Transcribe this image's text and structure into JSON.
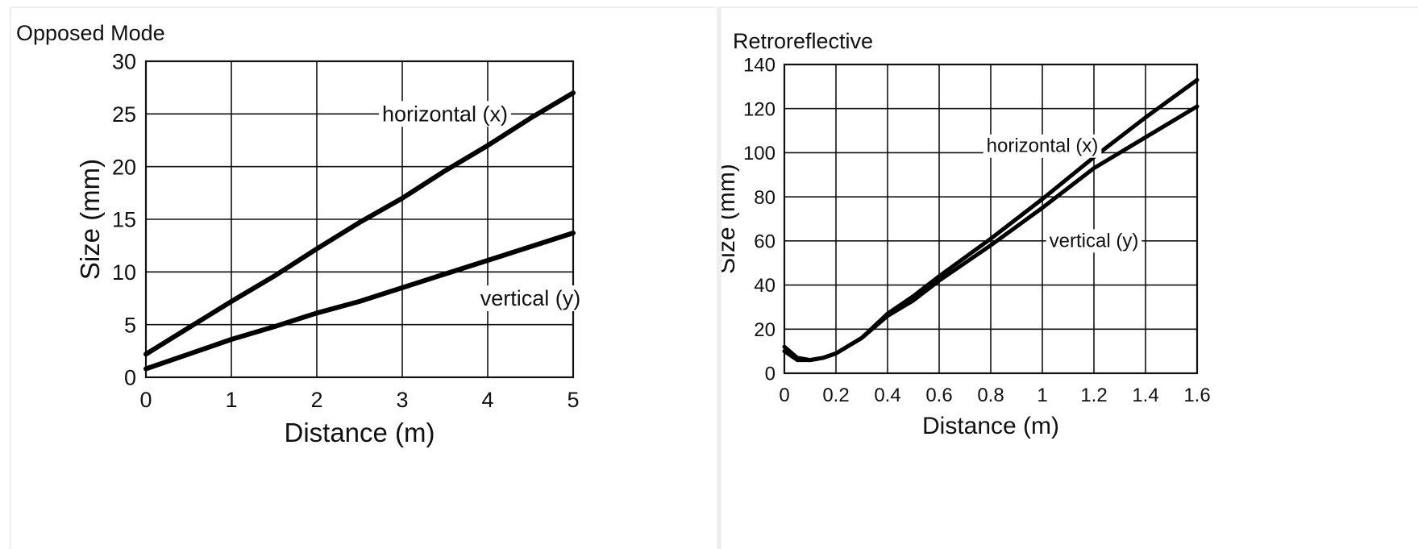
{
  "chart_data": [
    {
      "type": "line",
      "title": "Opposed Mode",
      "xlabel": "Distance (m)",
      "ylabel": "Size (mm)",
      "xlim": [
        0,
        5
      ],
      "ylim": [
        0,
        30
      ],
      "x_ticks": [
        "0",
        "1",
        "2",
        "3",
        "4",
        "5"
      ],
      "y_ticks": [
        "0",
        "5",
        "10",
        "15",
        "20",
        "25",
        "30"
      ],
      "grid": true,
      "series": [
        {
          "name": "horizontal (x)",
          "x": [
            0,
            0.5,
            1,
            1.5,
            2,
            2.5,
            3,
            3.5,
            4,
            4.5,
            5
          ],
          "y": [
            2.2,
            4.7,
            7.2,
            9.6,
            12.2,
            14.7,
            17.0,
            19.6,
            22.0,
            24.6,
            27.0
          ]
        },
        {
          "name": "vertical (y)",
          "x": [
            0,
            0.5,
            1,
            1.5,
            2,
            2.5,
            3,
            3.5,
            4,
            4.5,
            5
          ],
          "y": [
            0.8,
            2.2,
            3.6,
            4.8,
            6.1,
            7.2,
            8.5,
            9.8,
            11.1,
            12.4,
            13.7
          ]
        }
      ]
    },
    {
      "type": "line",
      "title": "Retroreflective",
      "xlabel": "Distance (m)",
      "ylabel": "Size (mm)",
      "xlim": [
        0,
        1.6
      ],
      "ylim": [
        0,
        140
      ],
      "x_ticks": [
        "0",
        "0.2",
        "0.4",
        "0.6",
        "0.8",
        "1",
        "1.2",
        "1.4",
        "1.6"
      ],
      "y_ticks": [
        "0",
        "20",
        "40",
        "60",
        "80",
        "100",
        "120",
        "140"
      ],
      "grid": true,
      "series": [
        {
          "name": "horizontal (x)",
          "x": [
            0,
            0.05,
            0.1,
            0.15,
            0.2,
            0.3,
            0.4,
            0.5,
            0.6,
            0.8,
            1.0,
            1.2,
            1.4,
            1.6
          ],
          "y": [
            12,
            7,
            6,
            7,
            9,
            16,
            27,
            35,
            44,
            61,
            79,
            98,
            116,
            133
          ]
        },
        {
          "name": "vertical (y)",
          "x": [
            0,
            0.05,
            0.1,
            0.15,
            0.2,
            0.3,
            0.4,
            0.5,
            0.6,
            0.8,
            1.0,
            1.2,
            1.4,
            1.6
          ],
          "y": [
            10,
            6,
            6,
            7,
            9,
            16,
            26,
            33,
            42,
            58,
            75,
            93,
            107,
            121
          ]
        }
      ]
    }
  ]
}
